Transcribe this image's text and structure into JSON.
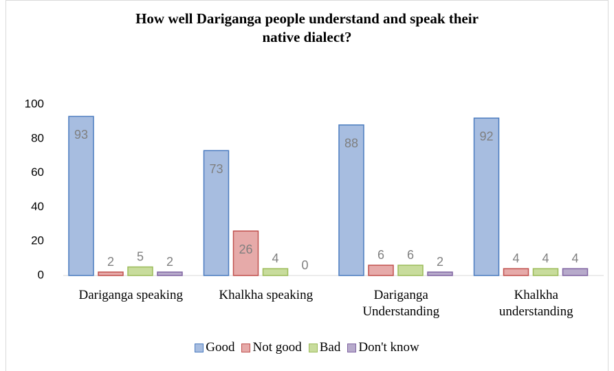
{
  "chart_data": {
    "type": "bar",
    "title": "How well Dariganga people understand and speak their\nnative dialect?",
    "categories": [
      "Dariganga speaking",
      "Khalkha speaking",
      "Dariganga\nUnderstanding",
      "Khalkha\nunderstanding"
    ],
    "series": [
      {
        "name": "Good",
        "color": "#a7bde0",
        "stroke": "#4a7bbf",
        "values": [
          93,
          73,
          88,
          92
        ]
      },
      {
        "name": "Not good",
        "color": "#e6aaa9",
        "stroke": "#c0504d",
        "values": [
          2,
          26,
          6,
          4
        ]
      },
      {
        "name": "Bad",
        "color": "#c8dc9c",
        "stroke": "#9bbb59",
        "values": [
          5,
          4,
          6,
          4
        ]
      },
      {
        "name": "Don't know",
        "color": "#b7aacb",
        "stroke": "#8064a2",
        "values": [
          2,
          0,
          2,
          4
        ]
      }
    ],
    "ylim": [
      0,
      100
    ],
    "yticks": [
      0,
      20,
      40,
      60,
      80,
      100
    ],
    "grid": false,
    "legend": "bottom"
  }
}
